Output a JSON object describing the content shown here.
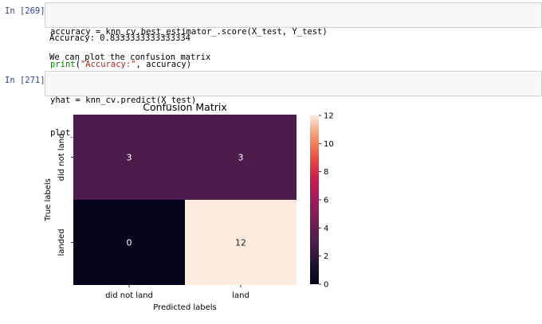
{
  "cells": [
    {
      "prompt": "In [269]:",
      "code_lines": [
        {
          "parts": [
            {
              "t": "accuracy = knn_cv.best_estimator_.score(X_test, Y_test)",
              "c": ""
            }
          ]
        },
        {
          "parts": [
            {
              "t": "print",
              "c": "kw-print"
            },
            {
              "t": "(",
              "c": ""
            },
            {
              "t": "\"Accuracy:\"",
              "c": "str"
            },
            {
              "t": ", accuracy)",
              "c": ""
            }
          ]
        }
      ],
      "output": "Accuracy: 0.8333333333333334",
      "markdown": "We can plot the confusion matrix"
    },
    {
      "prompt": "In [271]:",
      "code_lines": [
        {
          "parts": [
            {
              "t": "yhat = knn_cv.predict(X_test)",
              "c": ""
            }
          ]
        },
        {
          "parts": [
            {
              "t": "plot_confusion_matrix(Y_test, yhat)",
              "c": ""
            }
          ]
        }
      ]
    }
  ],
  "chart_data": {
    "type": "heatmap",
    "title": "Confusion Matrix",
    "xlabel": "Predicted labels",
    "ylabel": "True labels",
    "x_categories": [
      "did not land",
      "land"
    ],
    "y_categories": [
      "did not land",
      "landed"
    ],
    "values": [
      [
        3,
        3
      ],
      [
        0,
        12
      ]
    ],
    "colorbar": {
      "min": 0,
      "max": 12,
      "ticks": [
        0,
        2,
        4,
        6,
        8,
        10,
        12
      ]
    },
    "colors": {
      "v0": "#03051a",
      "v3": "#4c1d4b",
      "v12": "#faebdd",
      "text_dark_cell": "#ffffff",
      "text_light_cell": "#262626"
    }
  }
}
